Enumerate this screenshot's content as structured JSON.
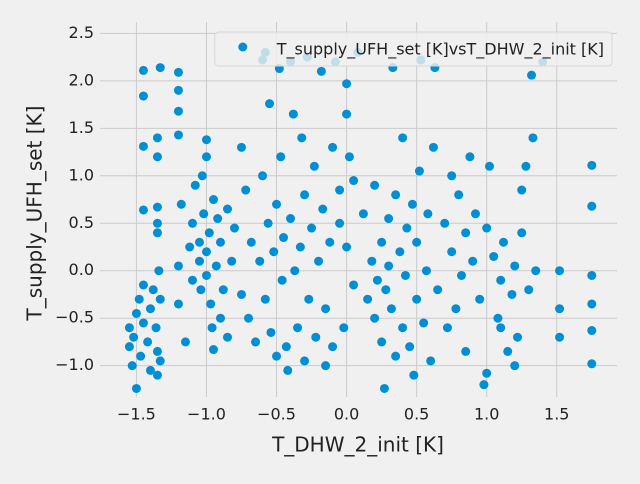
{
  "chart_data": {
    "type": "scatter",
    "xlabel": "T_DHW_2_init [K]",
    "ylabel": "T_supply_UFH_set [K]",
    "legend": "upper right",
    "grid": true,
    "xlim": [
      -1.76,
      1.93
    ],
    "ylim": [
      -1.33,
      2.62
    ],
    "xticks": [
      {
        "value": -1.5,
        "label": "−1.5"
      },
      {
        "value": -1.0,
        "label": "−1.0"
      },
      {
        "value": -0.5,
        "label": "−0.5"
      },
      {
        "value": 0,
        "label": "0.0"
      },
      0.5,
      {
        "value": 1,
        "label": "1.0"
      },
      1.5
    ],
    "yticks": [
      {
        "value": -1.0,
        "label": "−1.0"
      },
      {
        "value": -0.5,
        "label": "−0.5"
      },
      {
        "value": 0,
        "label": "0.0"
      },
      0.5,
      {
        "value": 1,
        "label": "1.0"
      },
      1.5,
      {
        "value": 2,
        "label": "2.0"
      },
      2.5
    ],
    "series": [
      {
        "name": "T_supply_UFH_set [K]vsT_DHW_2_init [K]",
        "color": "#008fd5",
        "x": [
          -1.55,
          -1.55,
          -1.53,
          -1.52,
          -1.5,
          -1.5,
          -1.48,
          -1.47,
          -1.45,
          -1.45,
          -1.45,
          -1.45,
          -1.45,
          -1.45,
          -1.42,
          -1.4,
          -1.4,
          -1.38,
          -1.36,
          -1.35,
          -1.35,
          -1.34,
          -1.35,
          -1.35,
          -1.35,
          -1.35,
          -1.35,
          -1.33,
          -1.33,
          -1.33,
          -1.2,
          -1.2,
          -1.2,
          -1.2,
          -1.2,
          -1.2,
          -1.18,
          -1.15,
          -1.12,
          -1.1,
          -1.1,
          -1.08,
          -1.05,
          -1.05,
          -1.04,
          -1.03,
          -1.02,
          -1.0,
          -1.0,
          -1.0,
          -1.0,
          -0.98,
          -0.97,
          -0.96,
          -0.95,
          -0.95,
          -0.93,
          -0.92,
          -0.9,
          -0.9,
          -0.88,
          -0.85,
          -0.85,
          -0.82,
          -0.8,
          -0.75,
          -0.75,
          -0.72,
          -0.7,
          -0.68,
          -0.65,
          -0.62,
          -0.6,
          -0.6,
          -0.58,
          -0.58,
          -0.56,
          -0.55,
          -0.54,
          -0.52,
          -0.5,
          -0.5,
          -0.48,
          -0.47,
          -0.46,
          -0.45,
          -0.43,
          -0.42,
          -0.4,
          -0.4,
          -0.38,
          -0.37,
          -0.35,
          -0.33,
          -0.32,
          -0.3,
          -0.3,
          -0.28,
          -0.27,
          -0.25,
          -0.23,
          -0.22,
          -0.2,
          -0.18,
          -0.17,
          -0.15,
          -0.15,
          -0.12,
          -0.1,
          -0.1,
          -0.08,
          -0.05,
          -0.05,
          -0.02,
          0.0,
          0.0,
          0.0,
          0.02,
          0.05,
          0.05,
          0.08,
          0.12,
          0.15,
          0.18,
          0.2,
          0.2,
          0.22,
          0.25,
          0.25,
          0.27,
          0.28,
          0.3,
          0.3,
          0.32,
          0.33,
          0.35,
          0.35,
          0.38,
          0.4,
          0.4,
          0.42,
          0.43,
          0.45,
          0.47,
          0.48,
          0.5,
          0.5,
          0.52,
          0.53,
          0.55,
          0.57,
          0.58,
          0.6,
          0.62,
          0.63,
          0.65,
          0.7,
          0.72,
          0.75,
          0.75,
          0.78,
          0.8,
          0.82,
          0.85,
          0.85,
          0.88,
          0.9,
          0.92,
          0.95,
          0.98,
          1.0,
          1.0,
          1.02,
          1.05,
          1.08,
          1.1,
          1.1,
          1.12,
          1.15,
          1.18,
          1.2,
          1.2,
          1.22,
          1.25,
          1.25,
          1.28,
          1.3,
          1.32,
          1.33,
          1.35,
          1.4,
          1.52,
          1.52,
          1.52,
          1.75,
          1.75,
          1.75,
          1.75,
          1.75,
          1.75
        ],
        "values": [
          -0.6,
          -0.8,
          -1.0,
          -0.7,
          -0.45,
          -1.24,
          -0.3,
          -0.9,
          -0.55,
          -0.15,
          0.64,
          1.31,
          1.84,
          2.11,
          -0.75,
          -0.4,
          -1.05,
          -0.2,
          -0.6,
          -0.85,
          -1.1,
          0.0,
          0.4,
          0.5,
          0.67,
          1.2,
          1.4,
          2.14,
          -0.3,
          -0.95,
          2.09,
          1.9,
          1.68,
          1.43,
          0.05,
          -0.35,
          0.7,
          -0.75,
          0.25,
          0.5,
          -0.1,
          0.9,
          0.3,
          0.1,
          -0.2,
          1.0,
          0.6,
          0.2,
          -0.05,
          1.2,
          1.38,
          0.4,
          -0.35,
          -0.6,
          0.75,
          -0.83,
          0.05,
          0.55,
          -0.5,
          0.3,
          -0.2,
          0.65,
          -0.7,
          0.1,
          0.45,
          1.3,
          -0.25,
          0.85,
          -0.5,
          0.3,
          -0.75,
          0.1,
          1.0,
          2.22,
          2.3,
          -0.3,
          0.5,
          1.76,
          -0.65,
          0.2,
          -0.9,
          0.7,
          2.13,
          1.2,
          -0.1,
          0.35,
          -0.8,
          -1.05,
          0.55,
          2.2,
          1.65,
          0.0,
          -0.6,
          0.25,
          1.4,
          -0.95,
          0.8,
          2.25,
          -0.3,
          0.45,
          1.1,
          -0.7,
          0.1,
          2.1,
          0.65,
          -1.0,
          -0.4,
          0.3,
          1.3,
          -0.8,
          2.2,
          0.85,
          0.5,
          -0.6,
          1.65,
          0.25,
          1.97,
          1.2,
          0.95,
          -0.15,
          2.3,
          0.6,
          -0.3,
          0.1,
          -0.5,
          0.9,
          -0.1,
          0.3,
          -0.75,
          -1.24,
          -0.2,
          0.05,
          0.55,
          -0.4,
          2.14,
          0.8,
          -0.9,
          0.2,
          -0.6,
          1.4,
          -0.05,
          0.45,
          -0.8,
          0.7,
          -1.1,
          0.3,
          -0.3,
          1.05,
          2.22,
          -0.55,
          0.0,
          0.6,
          -0.95,
          1.3,
          2.14,
          -0.2,
          0.5,
          -0.6,
          0.2,
          1.0,
          -0.4,
          0.8,
          -0.05,
          0.4,
          -0.85,
          1.2,
          0.1,
          0.6,
          -0.3,
          -1.2,
          0.45,
          -1.08,
          1.1,
          0.15,
          -0.5,
          -0.1,
          -0.6,
          0.3,
          -0.85,
          -0.25,
          -1.0,
          0.05,
          -0.7,
          0.4,
          0.85,
          1.1,
          -0.2,
          2.06,
          1.4,
          0.0,
          2.2,
          0.0,
          -0.4,
          -0.7,
          1.11,
          0.68,
          -0.05,
          -0.35,
          -0.63,
          -0.98
        ]
      }
    ]
  }
}
